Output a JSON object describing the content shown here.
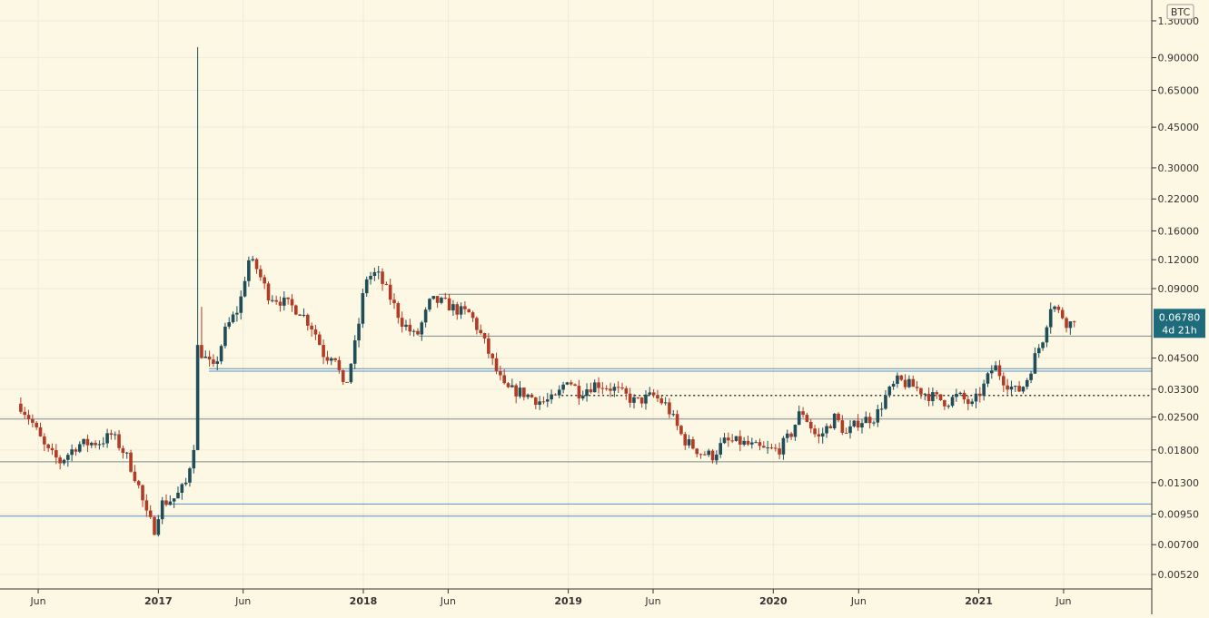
{
  "chart_data": {
    "type": "candlestick",
    "title": "",
    "xlabel": "",
    "ylabel": "",
    "currency": "BTC",
    "scale": "log",
    "grid": true,
    "ylim": [
      0.0045,
      1.6
    ],
    "xlim": [
      "2016-03-25",
      "2021-11-05"
    ],
    "y_ticks": [
      "1.30000",
      "0.90000",
      "0.65000",
      "0.45000",
      "0.30000",
      "0.22000",
      "0.16000",
      "0.12000",
      "0.09000",
      "0.06780",
      "0.04500",
      "0.03300",
      "0.02500",
      "0.01800",
      "0.01300",
      "0.00950",
      "0.00700",
      "0.00520"
    ],
    "x_ticks": [
      {
        "date": "2016-06-01",
        "label": "Jun",
        "bold": false
      },
      {
        "date": "2017-01-01",
        "label": "2017",
        "bold": true
      },
      {
        "date": "2017-06-01",
        "label": "Jun",
        "bold": false
      },
      {
        "date": "2018-01-01",
        "label": "2018",
        "bold": true
      },
      {
        "date": "2018-06-01",
        "label": "Jun",
        "bold": false
      },
      {
        "date": "2019-01-01",
        "label": "2019",
        "bold": true
      },
      {
        "date": "2019-06-01",
        "label": "Jun",
        "bold": false
      },
      {
        "date": "2020-01-01",
        "label": "2020",
        "bold": true
      },
      {
        "date": "2020-06-01",
        "label": "Jun",
        "bold": false
      },
      {
        "date": "2021-01-01",
        "label": "2021",
        "bold": true
      },
      {
        "date": "2021-06-01",
        "label": "Jun",
        "bold": false
      }
    ],
    "last_price": {
      "value": 0.0678,
      "label": "0.06780",
      "countdown": "4d 21h",
      "color": "#1e6b7b"
    },
    "horizontal_lines": [
      {
        "price": 0.085,
        "start": "2018-05-15",
        "color": "#7d8a8f",
        "style": "solid"
      },
      {
        "price": 0.056,
        "start": "2018-04-10",
        "color": "#7d8a8f",
        "style": "solid"
      },
      {
        "price": 0.0405,
        "start": "2017-04-01",
        "color": "#5b8fc4",
        "style": "solid"
      },
      {
        "price": 0.0395,
        "start": "2017-04-01",
        "color": "#5b8fc4",
        "style": "solid"
      },
      {
        "price": 0.031,
        "start": "2018-12-20",
        "color": "#333333",
        "style": "dotted"
      },
      {
        "price": 0.0245,
        "start": "2016-03-25",
        "color": "#7d8a8f",
        "style": "solid"
      },
      {
        "price": 0.016,
        "start": "2016-03-25",
        "color": "#7d8a8f",
        "style": "solid"
      },
      {
        "price": 0.0105,
        "start": "2017-01-15",
        "color": "#5b8fc4",
        "style": "solid"
      },
      {
        "price": 0.0093,
        "start": "2016-03-25",
        "color": "#5b8fc4",
        "style": "solid"
      }
    ],
    "colors": {
      "up": "#1f4e5a",
      "down": "#b23b26",
      "grid": "#efeadb",
      "axis_text": "#333333"
    },
    "spikes": [
      {
        "date": "2017-03-17",
        "high": 1.0
      },
      {
        "date": "2017-03-21",
        "high": 0.075
      }
    ],
    "anchors": [
      [
        "2016-05-01",
        0.028
      ],
      [
        "2016-05-20",
        0.024
      ],
      [
        "2016-06-15",
        0.018
      ],
      [
        "2016-07-10",
        0.016
      ],
      [
        "2016-08-10",
        0.019
      ],
      [
        "2016-09-20",
        0.0195
      ],
      [
        "2016-10-10",
        0.021
      ],
      [
        "2016-11-05",
        0.017
      ],
      [
        "2016-11-25",
        0.013
      ],
      [
        "2016-12-10",
        0.0095
      ],
      [
        "2016-12-25",
        0.0082
      ],
      [
        "2017-01-05",
        0.0105
      ],
      [
        "2017-02-01",
        0.0112
      ],
      [
        "2017-02-20",
        0.013
      ],
      [
        "2017-03-05",
        0.019
      ],
      [
        "2017-03-12",
        0.05
      ],
      [
        "2017-03-25",
        0.045
      ],
      [
        "2017-04-10",
        0.04
      ],
      [
        "2017-05-01",
        0.06
      ],
      [
        "2017-05-25",
        0.075
      ],
      [
        "2017-06-10",
        0.12
      ],
      [
        "2017-06-25",
        0.11
      ],
      [
        "2017-07-15",
        0.085
      ],
      [
        "2017-08-15",
        0.078
      ],
      [
        "2017-09-10",
        0.072
      ],
      [
        "2017-10-05",
        0.06
      ],
      [
        "2017-10-25",
        0.045
      ],
      [
        "2017-11-10",
        0.048
      ],
      [
        "2017-11-28",
        0.032
      ],
      [
        "2017-12-05",
        0.038
      ],
      [
        "2017-12-20",
        0.055
      ],
      [
        "2018-01-05",
        0.1
      ],
      [
        "2018-01-25",
        0.105
      ],
      [
        "2018-02-15",
        0.085
      ],
      [
        "2018-03-10",
        0.065
      ],
      [
        "2018-04-05",
        0.055
      ],
      [
        "2018-05-01",
        0.08
      ],
      [
        "2018-05-25",
        0.078
      ],
      [
        "2018-06-20",
        0.072
      ],
      [
        "2018-07-10",
        0.07
      ],
      [
        "2018-08-01",
        0.055
      ],
      [
        "2018-08-25",
        0.04
      ],
      [
        "2018-09-10",
        0.033
      ],
      [
        "2018-10-10",
        0.032
      ],
      [
        "2018-11-15",
        0.029
      ],
      [
        "2018-12-10",
        0.03
      ],
      [
        "2018-12-30",
        0.037
      ],
      [
        "2019-01-20",
        0.032
      ],
      [
        "2019-02-20",
        0.035
      ],
      [
        "2019-03-25",
        0.033
      ],
      [
        "2019-05-01",
        0.029
      ],
      [
        "2019-06-01",
        0.031
      ],
      [
        "2019-06-25",
        0.028
      ],
      [
        "2019-07-25",
        0.02
      ],
      [
        "2019-08-25",
        0.0175
      ],
      [
        "2019-09-15",
        0.017
      ],
      [
        "2019-10-05",
        0.0195
      ],
      [
        "2019-11-01",
        0.0195
      ],
      [
        "2019-12-15",
        0.018
      ],
      [
        "2020-01-10",
        0.018
      ],
      [
        "2020-02-01",
        0.021
      ],
      [
        "2020-02-20",
        0.027
      ],
      [
        "2020-03-20",
        0.02
      ],
      [
        "2020-04-20",
        0.025
      ],
      [
        "2020-05-10",
        0.021
      ],
      [
        "2020-06-01",
        0.024
      ],
      [
        "2020-07-01",
        0.025
      ],
      [
        "2020-07-20",
        0.031
      ],
      [
        "2020-08-10",
        0.036
      ],
      [
        "2020-09-05",
        0.034
      ],
      [
        "2020-10-05",
        0.031
      ],
      [
        "2020-11-05",
        0.029
      ],
      [
        "2020-11-25",
        0.031
      ],
      [
        "2020-12-20",
        0.028
      ],
      [
        "2021-01-10",
        0.034
      ],
      [
        "2021-01-28",
        0.042
      ],
      [
        "2021-02-15",
        0.036
      ],
      [
        "2021-03-10",
        0.032
      ],
      [
        "2021-03-25",
        0.035
      ],
      [
        "2021-04-10",
        0.045
      ],
      [
        "2021-04-25",
        0.055
      ],
      [
        "2021-05-10",
        0.078
      ],
      [
        "2021-05-25",
        0.07
      ],
      [
        "2021-06-01",
        0.068
      ],
      [
        "2021-06-10",
        0.062
      ],
      [
        "2021-06-20",
        0.0678
      ]
    ]
  }
}
